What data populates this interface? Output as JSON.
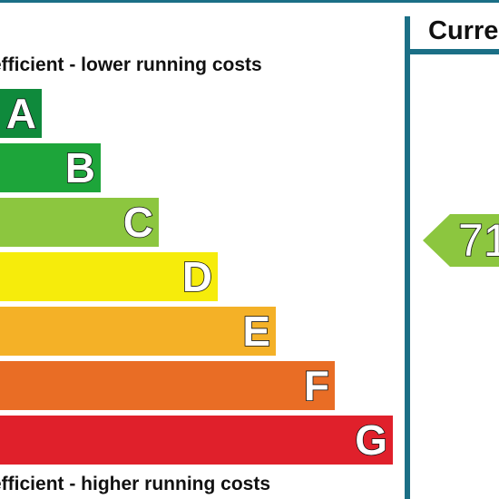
{
  "captions": {
    "top": "efficient - lower running costs",
    "bottom": "efficient - higher running costs"
  },
  "bands": [
    {
      "letter": "A",
      "color": "#0f8a3c"
    },
    {
      "letter": "B",
      "color": "#1da53a"
    },
    {
      "letter": "C",
      "color": "#8cc63f"
    },
    {
      "letter": "D",
      "color": "#f6ec0b"
    },
    {
      "letter": "E",
      "color": "#f4b127"
    },
    {
      "letter": "F",
      "color": "#e96d25"
    },
    {
      "letter": "G",
      "color": "#e0202b"
    }
  ],
  "current_column": {
    "header": "Current",
    "rating_value": "71",
    "rating_color": "#8cc63f"
  },
  "colors": {
    "rule": "#1b6f86"
  }
}
